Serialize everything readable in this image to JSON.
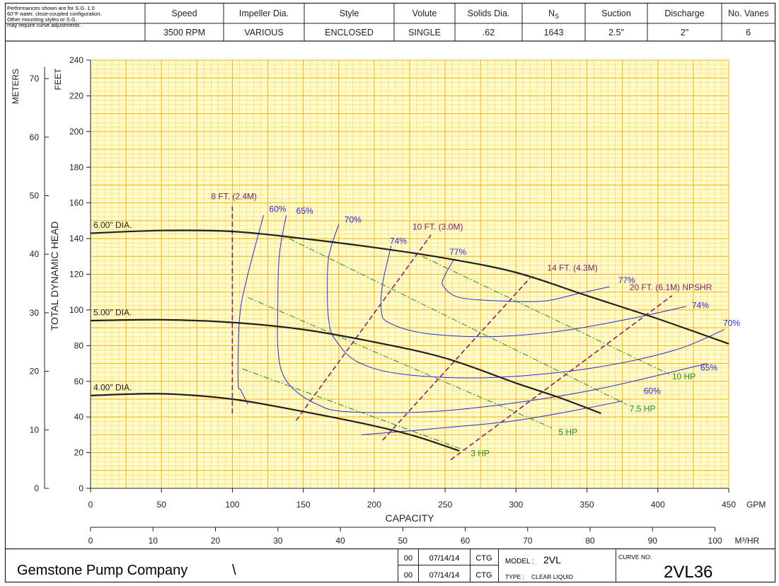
{
  "header": {
    "note_lines": [
      "Performances shown are for S.G. 1.0",
      "60°F water, close-coupled configuration.",
      "Other mounting styles or S.G.",
      "may require curve adjustments."
    ],
    "columns": [
      {
        "label": "Speed",
        "value": "3500 RPM"
      },
      {
        "label": "Impeller Dia.",
        "value": "VARIOUS"
      },
      {
        "label": "Style",
        "value": "ENCLOSED"
      },
      {
        "label": "Volute",
        "value": "SINGLE"
      },
      {
        "label": "Solids Dia.",
        "value": ".62"
      },
      {
        "label": "N",
        "label_sub": "S",
        "value": "1643"
      },
      {
        "label": "Suction",
        "value": "2.5\""
      },
      {
        "label": "Discharge",
        "value": "2\""
      },
      {
        "label": "No. Vanes",
        "value": "6"
      }
    ]
  },
  "footer": {
    "company": "Gemstone Pump Company",
    "company_suffix": "\\",
    "revisions": [
      {
        "rev": "00",
        "date": "07/14/14",
        "by": "CTG"
      },
      {
        "rev": "00",
        "date": "07/14/14",
        "by": "CTG"
      }
    ],
    "model_label": "MODEL :",
    "model_value": "2VL",
    "type_label": "TYPE :",
    "type_value": "CLEAR LIQUID",
    "curve_no_label": "CURVE NO:",
    "curve_no_value": "2VL36"
  },
  "colors": {
    "grid_major": "#f4b300",
    "grid_minor": "#ffdc5a",
    "plot_bg": "#fffbd0",
    "head_curve": "#231f20",
    "efficiency": "#2b2bd6",
    "npshr": "#7b2274",
    "hp": "#1f8c2f"
  },
  "chart_data": {
    "type": "line",
    "title": "",
    "xlabel": "CAPACITY",
    "ylabel": "TOTAL DYNAMIC HEAD",
    "x_unit": "GPM",
    "xlim": [
      0,
      450
    ],
    "x_ticks": [
      0,
      50,
      100,
      150,
      200,
      250,
      300,
      350,
      400,
      450
    ],
    "y_unit_primary": "FEET",
    "ylim": [
      0,
      240
    ],
    "y_ticks": [
      0,
      20,
      40,
      60,
      80,
      100,
      120,
      140,
      160,
      180,
      200,
      220,
      240
    ],
    "y_unit_secondary": "METERS",
    "y2_ticks": [
      0,
      10,
      20,
      30,
      40,
      50,
      60,
      70
    ],
    "x2_unit": "M3/HR",
    "x2_unit_display": "M³/HR",
    "x2_ticks": [
      0,
      10,
      20,
      30,
      40,
      50,
      60,
      70,
      80,
      90,
      100
    ],
    "grid": true,
    "head_curves": [
      {
        "name": "6.00\" DIA.",
        "points": [
          [
            0,
            143
          ],
          [
            50,
            144.5
          ],
          [
            100,
            144
          ],
          [
            150,
            140
          ],
          [
            200,
            135
          ],
          [
            250,
            129
          ],
          [
            300,
            121
          ],
          [
            350,
            108
          ],
          [
            400,
            95
          ],
          [
            450,
            81
          ]
        ]
      },
      {
        "name": "5.00\" DIA.",
        "points": [
          [
            0,
            94
          ],
          [
            50,
            94.5
          ],
          [
            100,
            93
          ],
          [
            150,
            89
          ],
          [
            200,
            82
          ],
          [
            250,
            73
          ],
          [
            300,
            59
          ],
          [
            330,
            51
          ],
          [
            360,
            42
          ]
        ]
      },
      {
        "name": "4.00\" DIA.",
        "points": [
          [
            0,
            52
          ],
          [
            50,
            53
          ],
          [
            100,
            50
          ],
          [
            150,
            43
          ],
          [
            200,
            35
          ],
          [
            230,
            29
          ],
          [
            260,
            21
          ]
        ]
      }
    ],
    "efficiency_contours": [
      {
        "label": "60%",
        "label_at": [
          126,
          155
        ],
        "points": [
          [
            122,
            153
          ],
          [
            110,
            117
          ],
          [
            105,
            95
          ],
          [
            104,
            60
          ],
          [
            106,
            55
          ],
          [
            111,
            47
          ]
        ]
      },
      {
        "label": "60%",
        "label_at": [
          390,
          53
        ],
        "points": [
          [
            191,
            30
          ],
          [
            250,
            34
          ],
          [
            300,
            38
          ],
          [
            350,
            45
          ],
          [
            375,
            49
          ]
        ]
      },
      {
        "label": "65%",
        "label_at": [
          145,
          154
        ],
        "points": [
          [
            138,
            153
          ],
          [
            133,
            130
          ],
          [
            132,
            100
          ],
          [
            132,
            80
          ],
          [
            135,
            65
          ],
          [
            144,
            55
          ],
          [
            160,
            47
          ],
          [
            180,
            43
          ],
          [
            240,
            43
          ],
          [
            300,
            48
          ],
          [
            360,
            56
          ],
          [
            435,
            70
          ]
        ]
      },
      {
        "label": "65%",
        "label_at": [
          430,
          66
        ],
        "points": []
      },
      {
        "label": "70%",
        "label_at": [
          179,
          149
        ],
        "points": [
          [
            175,
            148
          ],
          [
            168,
            130
          ],
          [
            167,
            110
          ],
          [
            168,
            94
          ],
          [
            172,
            84
          ],
          [
            188,
            71
          ],
          [
            220,
            64
          ],
          [
            280,
            62
          ],
          [
            350,
            67
          ],
          [
            410,
            77
          ],
          [
            447,
            89
          ]
        ]
      },
      {
        "label": "70%",
        "label_at": [
          446,
          91
        ],
        "points": []
      },
      {
        "label": "74%",
        "label_at": [
          211,
          137
        ],
        "points": [
          [
            212,
            136
          ],
          [
            206,
            115
          ],
          [
            205,
            100
          ],
          [
            210,
            93
          ],
          [
            235,
            87
          ],
          [
            280,
            85
          ],
          [
            330,
            88
          ],
          [
            380,
            95
          ],
          [
            420,
            102
          ]
        ]
      },
      {
        "label": "74%",
        "label_at": [
          424,
          101
        ],
        "points": []
      },
      {
        "label": "77%",
        "label_at": [
          253,
          131
        ],
        "points": [
          [
            256,
            128
          ],
          [
            249,
            118
          ],
          [
            249,
            113
          ],
          [
            260,
            107
          ],
          [
            290,
            105
          ],
          [
            320,
            105
          ],
          [
            343,
            109
          ],
          [
            366,
            113
          ]
        ]
      },
      {
        "label": "77%",
        "label_at": [
          372,
          115
        ],
        "points": []
      }
    ],
    "npshr_lines": [
      {
        "label": "8 FT. (2.4M)",
        "label_at": [
          85,
          162
        ],
        "points": [
          [
            100,
            42
          ],
          [
            100,
            158
          ]
        ]
      },
      {
        "label": "10 FT. (3.0M)",
        "label_at": [
          227,
          145
        ],
        "points": [
          [
            145,
            38
          ],
          [
            240,
            142
          ]
        ]
      },
      {
        "label": "14 FT. (4.3M)",
        "label_at": [
          322,
          122
        ],
        "points": [
          [
            206,
            27
          ],
          [
            310,
            118
          ]
        ]
      },
      {
        "label": "20 FT. (6.1M) NPSHR",
        "label_at": [
          380,
          111
        ],
        "points": [
          [
            254,
            16
          ],
          [
            410,
            108
          ]
        ]
      }
    ],
    "horsepower_lines": [
      {
        "label": "3 HP",
        "label_at": [
          268,
          18
        ],
        "points": [
          [
            107,
            67
          ],
          [
            265,
            21
          ]
        ]
      },
      {
        "label": "5 HP",
        "label_at": [
          330,
          30
        ],
        "points": [
          [
            111,
            107
          ],
          [
            325,
            34
          ]
        ]
      },
      {
        "label": "7.5 HP",
        "label_at": [
          380,
          43
        ],
        "points": [
          [
            140,
            140
          ],
          [
            378,
            47
          ]
        ]
      },
      {
        "label": "10 HP",
        "label_at": [
          410,
          61
        ],
        "points": [
          [
            234,
            130
          ],
          [
            408,
            64
          ]
        ]
      }
    ]
  }
}
